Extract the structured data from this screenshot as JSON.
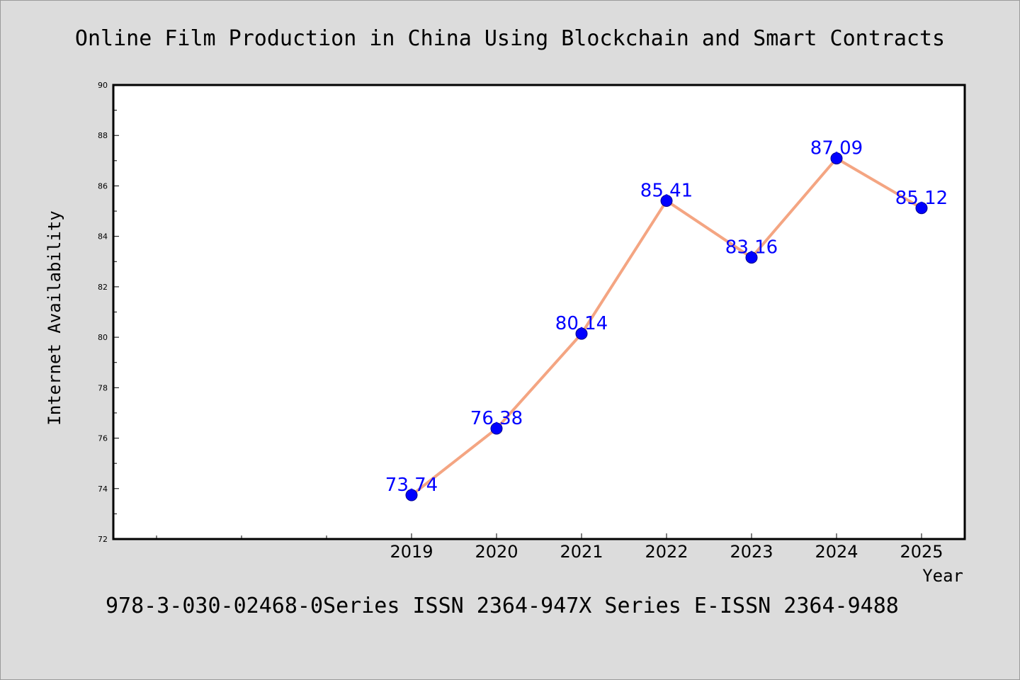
{
  "chart_data": {
    "type": "line",
    "title": "Online Film Production in China Using Blockchain and Smart Contracts",
    "xlabel": "Year",
    "ylabel": "Internet Availability",
    "footer": "978-3-030-02468-0Series ISSN 2364-947X Series E-ISSN 2364-9488",
    "categories": [
      "2019",
      "2020",
      "2021",
      "2022",
      "2023",
      "2024",
      "2025"
    ],
    "series": [
      {
        "values": [
          73.74,
          76.38,
          80.14,
          85.41,
          83.16,
          87.09,
          85.12
        ],
        "labels": [
          "73.74",
          "76.38",
          "80.14",
          "85.41",
          "83.16",
          "87.09",
          "85.12"
        ]
      }
    ],
    "ylim": [
      72,
      90
    ],
    "yticks": [
      72,
      74,
      76,
      78,
      80,
      82,
      84,
      86,
      88,
      90
    ],
    "ytick_labels": [
      "72",
      "74",
      "76",
      "78",
      "80",
      "82",
      "84",
      "86",
      "88",
      "90"
    ],
    "grid": false,
    "legend": "none",
    "colors": {
      "background": "#dcdcdc",
      "plot_area": "#ffffff",
      "line": "#f4a582",
      "marker": "#0000ff",
      "data_label": "#0000ff",
      "text": "#000000"
    }
  }
}
